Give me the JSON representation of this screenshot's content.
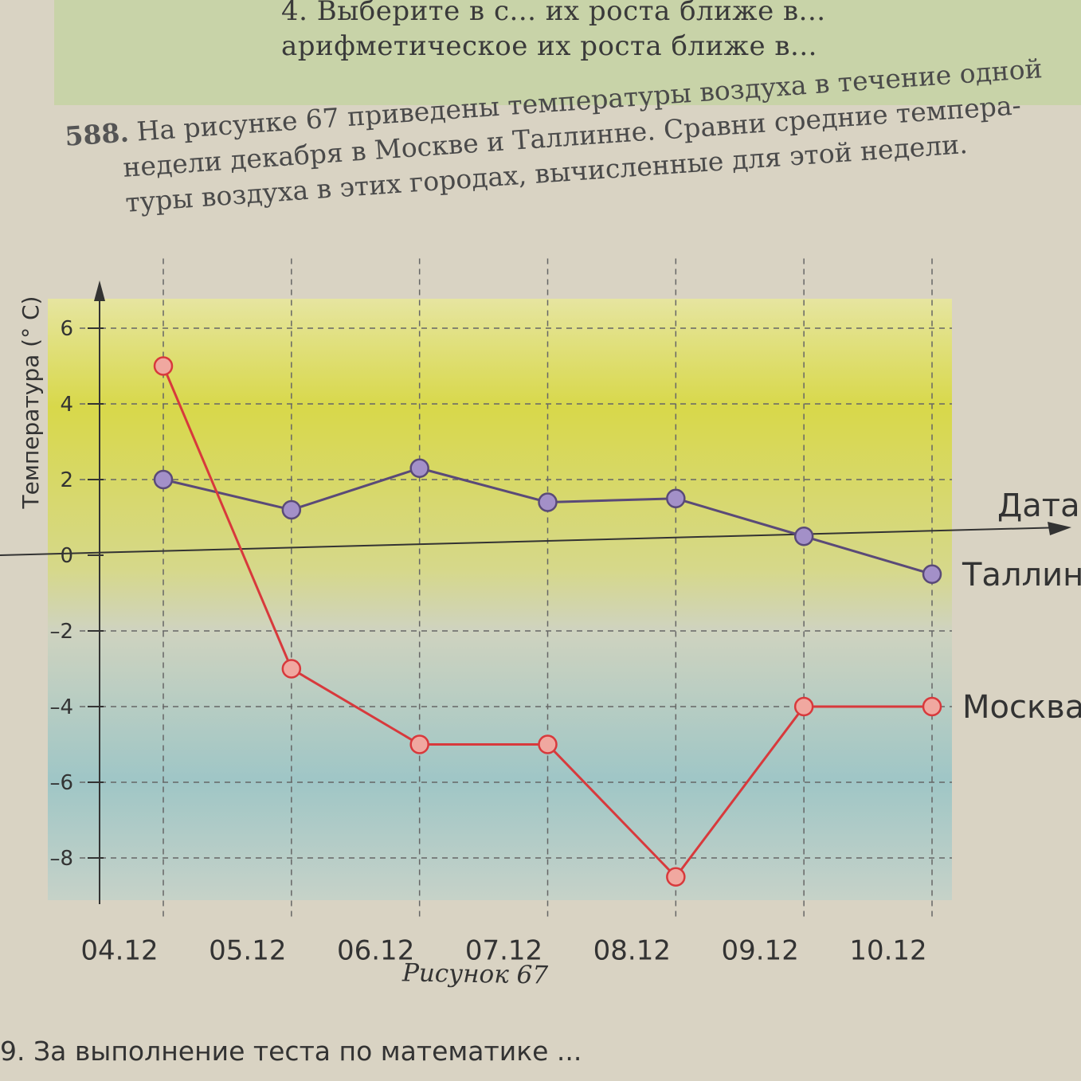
{
  "top_box": {
    "line1": "4. Выберите в с... их роста ближе в...",
    "line2": "арифметическое их роста ближе в..."
  },
  "problem": {
    "number": "588.",
    "lines": [
      "На рисунке 67 приведены температуры воздуха в течение одной",
      "недели декабря в Москве и Таллинне. Сравни средние темпера-",
      "туры воздуха в этих городах, вычисленные для этой недели."
    ]
  },
  "caption": "Рисунок 67",
  "bottom_text": "9. За выполнение теста по математике ...",
  "chart_data": {
    "type": "line",
    "title": "",
    "xlabel": "Дата",
    "ylabel": "Температура (° C)",
    "categories": [
      "04.12",
      "05.12",
      "06.12",
      "07.12",
      "08.12",
      "09.12",
      "10.12"
    ],
    "ylim": [
      -9,
      7
    ],
    "yticks": [
      -8,
      -6,
      -4,
      -2,
      0,
      2,
      4,
      6
    ],
    "grid": true,
    "series": [
      {
        "name": "Таллин",
        "values": [
          2,
          1.2,
          2.3,
          1.4,
          1.5,
          0.5,
          -0.5
        ],
        "color": "#5a4a78",
        "marker_fill": "#a390c8"
      },
      {
        "name": "Москва",
        "values": [
          5,
          -3,
          -5,
          -5,
          -8.5,
          -4,
          -4
        ],
        "color": "#d8393c",
        "marker_fill": "#f0a8a0"
      }
    ]
  }
}
